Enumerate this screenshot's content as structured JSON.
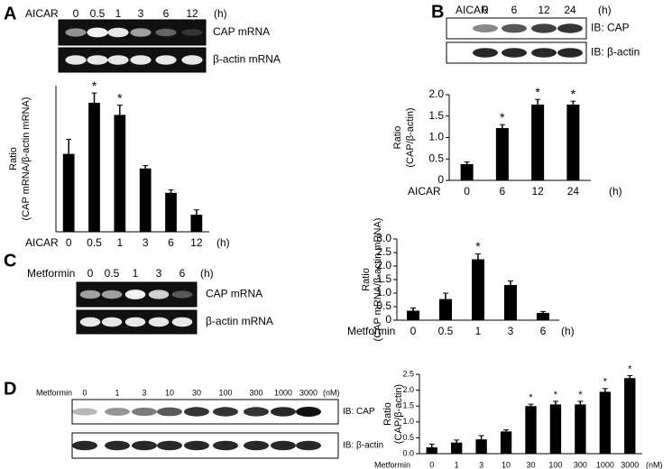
{
  "chart_data": [
    {
      "type": "bar",
      "panel_chart": "A",
      "ylabel": "Ratio",
      "ylabel_sub": "(CAP mRNA/β-actin mRNA)",
      "xlabel": "AICAR",
      "x_unit": "(h)",
      "categories": [
        "0",
        "0.5",
        "1",
        "3",
        "6",
        "12"
      ],
      "values": [
        1.6,
        2.65,
        2.4,
        1.3,
        0.8,
        0.35
      ],
      "errors": [
        0.3,
        0.2,
        0.2,
        0.06,
        0.06,
        0.1
      ],
      "color": "#000000",
      "ylim": [
        0,
        3
      ],
      "annotations": [
        {
          "x": "0.5",
          "text": "*"
        },
        {
          "x": "1",
          "text": "*"
        }
      ]
    },
    {
      "type": "bar",
      "ylabel": "Ratio",
      "ylabel_sub": "(CAP/β-actin)",
      "xlabel": "AICAR",
      "x_unit": "(h)",
      "categories": [
        "0",
        "6",
        "12",
        "24"
      ],
      "values": [
        0.38,
        1.22,
        1.77,
        1.77
      ],
      "errors": [
        0.05,
        0.08,
        0.12,
        0.08
      ],
      "color": "#000000",
      "ylim": [
        0,
        2
      ],
      "yticks": [
        0,
        0.5,
        {
          "value": 1,
          "label": "1.0"
        },
        1.5,
        {
          "value": 2,
          "label": "2.0"
        }
      ],
      "annotations": [
        {
          "x": "6",
          "text": "*"
        },
        {
          "x": "12",
          "text": "*"
        },
        {
          "x": "24",
          "text": "*"
        }
      ]
    },
    {
      "type": "bar",
      "ylabel": "Ratio",
      "ylabel_sub": "(CAP mRNA/β-actin mRNA)",
      "xlabel": "Metformin",
      "x_unit": "(h)",
      "categories": [
        "0",
        "0.5",
        "1",
        "3",
        "6"
      ],
      "values": [
        0.35,
        0.78,
        2.25,
        1.3,
        0.27
      ],
      "errors": [
        0.1,
        0.22,
        0.2,
        0.15,
        0.05
      ],
      "color": "#000000",
      "ylim": [
        0,
        3
      ],
      "yticks": [
        0,
        0.5,
        {
          "value": 1,
          "label": "1.0"
        },
        1.5,
        {
          "value": 2,
          "label": "2.0"
        },
        2.5,
        {
          "value": 3,
          "label": "3.0"
        }
      ],
      "annotations": [
        {
          "x": "1",
          "text": "*"
        }
      ]
    },
    {
      "type": "bar",
      "ylabel": "Ratio",
      "ylabel_sub": "(CAP/β-actin)",
      "xlabel": "Metformin",
      "x_unit": "(nM)",
      "categories": [
        "0",
        "1",
        "3",
        "10",
        "30",
        "100",
        "300",
        "1000",
        "3000"
      ],
      "values": [
        0.2,
        0.35,
        0.45,
        0.7,
        1.5,
        1.55,
        1.55,
        1.95,
        2.38
      ],
      "errors": [
        0.1,
        0.08,
        0.12,
        0.05,
        0.06,
        0.1,
        0.1,
        0.1,
        0.08
      ],
      "color": "#000000",
      "ylim": [
        0,
        2.5
      ],
      "yticks": [
        {
          "value": 0,
          "label": "0.0"
        },
        0.5,
        {
          "value": 1,
          "label": "1.0"
        },
        1.5,
        {
          "value": 2,
          "label": "2.0"
        },
        2.5
      ],
      "annotations": [
        {
          "x": "30",
          "text": "*"
        },
        {
          "x": "100",
          "text": "*"
        },
        {
          "x": "300",
          "text": "*"
        },
        {
          "x": "1000",
          "text": "*"
        },
        {
          "x": "3000",
          "text": "*"
        }
      ]
    }
  ],
  "blots": [
    {
      "panel": "A",
      "treatment": "AICAR",
      "lanes": [
        "0",
        "0.5",
        "1",
        "3",
        "6",
        "12"
      ],
      "unit": "(h)",
      "rows": [
        "CAP mRNA",
        "β-actin mRNA"
      ]
    },
    {
      "panel": "B",
      "treatment": "AICAR",
      "lanes": [
        "0",
        "6",
        "12",
        "24"
      ],
      "unit": "(h)",
      "rows": [
        "IB: CAP",
        "IB: β-actin"
      ]
    },
    {
      "panel": "C",
      "treatment": "Metformin",
      "lanes": [
        "0",
        "0.5",
        "1",
        "3",
        "6"
      ],
      "unit": "(h)",
      "rows": [
        "CAP mRNA",
        "β-actin mRNA"
      ]
    },
    {
      "panel": "D",
      "treatment": "Metformin",
      "lanes": [
        "0",
        "1",
        "3",
        "10",
        "30",
        "100",
        "300",
        "1000",
        "3000"
      ],
      "unit": "(nM)",
      "rows": [
        "IB: CAP",
        "IB: β-actin"
      ]
    }
  ]
}
